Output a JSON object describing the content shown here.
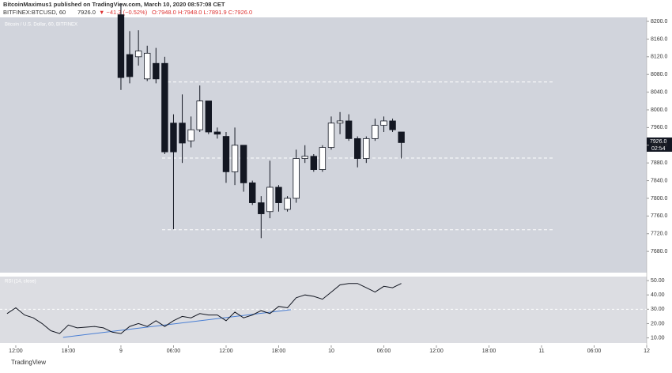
{
  "header": {
    "published": "BitcoinMaximus1 published on TradingView.com, March 10, 2020 08:57:08 CET",
    "symbol": "BITFINEX:BTCUSD, 60",
    "last": "7926.0",
    "change": "▼ −41.3 (−0.52%)",
    "ohlc": "O:7948.0  H:7948.0  L:7891.9  C:7926.0",
    "footer": "TradingView"
  },
  "chart_data": [
    {
      "type": "candlestick",
      "legend": "Bitcoin / U.S. Dollar, 60, BITFINEX",
      "price_tag": "7926.0",
      "countdown": "02:54",
      "up_color": "#ffffff",
      "down_color": "#131722",
      "x": [
        0,
        1,
        2,
        3,
        4,
        5,
        6,
        7,
        8,
        9,
        10,
        11,
        12,
        13,
        14,
        15,
        16,
        17,
        18,
        19,
        20,
        21,
        22,
        23,
        24,
        25,
        26,
        27,
        28,
        29,
        30,
        31,
        32
      ],
      "open": [
        8215,
        8125,
        8120,
        8070,
        8105,
        8105,
        7970,
        7970,
        7930,
        7955,
        8020,
        7950,
        7940,
        7860,
        7920,
        7835,
        7790,
        7770,
        7825,
        7775,
        7800,
        7890,
        7895,
        7865,
        7915,
        7970,
        7975,
        7935,
        7890,
        7935,
        7965,
        7975,
        7950
      ],
      "high": [
        8240,
        8178,
        8180,
        8145,
        8140,
        8120,
        7990,
        8035,
        7985,
        8055,
        8020,
        7960,
        7950,
        7960,
        7920,
        7840,
        7805,
        7885,
        7830,
        7805,
        7910,
        7920,
        7900,
        7920,
        7985,
        7995,
        7990,
        7940,
        7940,
        7980,
        7985,
        7980,
        7950
      ],
      "low": [
        8045,
        8060,
        8100,
        8065,
        8060,
        7900,
        7730,
        7880,
        7915,
        7950,
        7945,
        7935,
        7835,
        7830,
        7815,
        7785,
        7710,
        7755,
        7770,
        7770,
        7790,
        7880,
        7860,
        7860,
        7910,
        7945,
        7930,
        7870,
        7880,
        7930,
        7950,
        7950,
        7890
      ],
      "close": [
        8073,
        8075,
        8133,
        8128,
        8070,
        7905,
        7905,
        7925,
        7955,
        8020,
        7950,
        7945,
        7860,
        7920,
        7835,
        7790,
        7765,
        7825,
        7790,
        7800,
        7890,
        7895,
        7865,
        7915,
        7970,
        7975,
        7935,
        7890,
        7935,
        7965,
        7975,
        7955,
        7926
      ],
      "levels": [
        8063,
        7891,
        7729
      ],
      "xlim": [
        -13.8,
        60
      ],
      "xticks": [
        {
          "value": -12,
          "label": "12:00"
        },
        {
          "value": -6,
          "label": "18:00"
        },
        {
          "value": 0,
          "label": "9"
        },
        {
          "value": 6,
          "label": "06:00"
        },
        {
          "value": 12,
          "label": "12:00"
        },
        {
          "value": 18,
          "label": "18:00"
        },
        {
          "value": 24,
          "label": "10"
        },
        {
          "value": 30,
          "label": "06:00"
        },
        {
          "value": 36,
          "label": "12:00"
        },
        {
          "value": 42,
          "label": "18:00"
        },
        {
          "value": 48,
          "label": "11"
        },
        {
          "value": 54,
          "label": "06:00"
        },
        {
          "value": 60,
          "label": "12"
        }
      ],
      "ylim": [
        7632,
        8209
      ],
      "yticks": [
        {
          "value": 8200,
          "label": "8200.0"
        },
        {
          "value": 8160,
          "label": "8160.0"
        },
        {
          "value": 8120,
          "label": "8120.0"
        },
        {
          "value": 8080,
          "label": "8080.0"
        },
        {
          "value": 8040,
          "label": "8040.0"
        },
        {
          "value": 8000,
          "label": "8000.0"
        },
        {
          "value": 7960,
          "label": "7960.0"
        },
        {
          "value": 7920,
          "label": "7920.0"
        },
        {
          "value": 7880,
          "label": "7880.0"
        },
        {
          "value": 7840,
          "label": "7840.0"
        },
        {
          "value": 7800,
          "label": "7800.0"
        },
        {
          "value": 7760,
          "label": "7760.0"
        },
        {
          "value": 7720,
          "label": "7720.0"
        },
        {
          "value": 7680,
          "label": "7680.0"
        }
      ]
    },
    {
      "type": "line",
      "title": "RSI (14, close)",
      "color": "#131722",
      "x": [
        -13,
        -12,
        -11,
        -10,
        -9,
        -8,
        -7,
        -6,
        -5,
        -4,
        -3,
        -2,
        -1,
        0,
        1,
        2,
        3,
        4,
        5,
        6,
        7,
        8,
        9,
        10,
        11,
        12,
        13,
        14,
        15,
        16,
        17,
        18,
        19,
        20,
        21,
        22,
        23,
        24,
        25,
        26,
        27,
        28,
        29,
        30,
        31,
        32
      ],
      "values": [
        27,
        31,
        26,
        24,
        20,
        15,
        13,
        19,
        17,
        17.5,
        18,
        17,
        14,
        13,
        18,
        20,
        18,
        22,
        18,
        22,
        25,
        24,
        27,
        26,
        26,
        22,
        28,
        24,
        26,
        29,
        27,
        32,
        31,
        38,
        40,
        39,
        37,
        42,
        47,
        48,
        48,
        45,
        42,
        46,
        45,
        48
      ],
      "trendline": {
        "color": "#4a7fd4",
        "x": [
          -6.6,
          19.4
        ],
        "values": [
          10.4,
          29.7
        ]
      },
      "levels": [
        30
      ],
      "ylim": [
        4.8,
        52.8
      ],
      "yticks": [
        {
          "value": 50,
          "label": "50.00"
        },
        {
          "value": 40,
          "label": "40.00"
        },
        {
          "value": 30,
          "label": "30.00"
        },
        {
          "value": 20,
          "label": "20.00"
        },
        {
          "value": 10,
          "label": "10.00"
        }
      ]
    }
  ]
}
